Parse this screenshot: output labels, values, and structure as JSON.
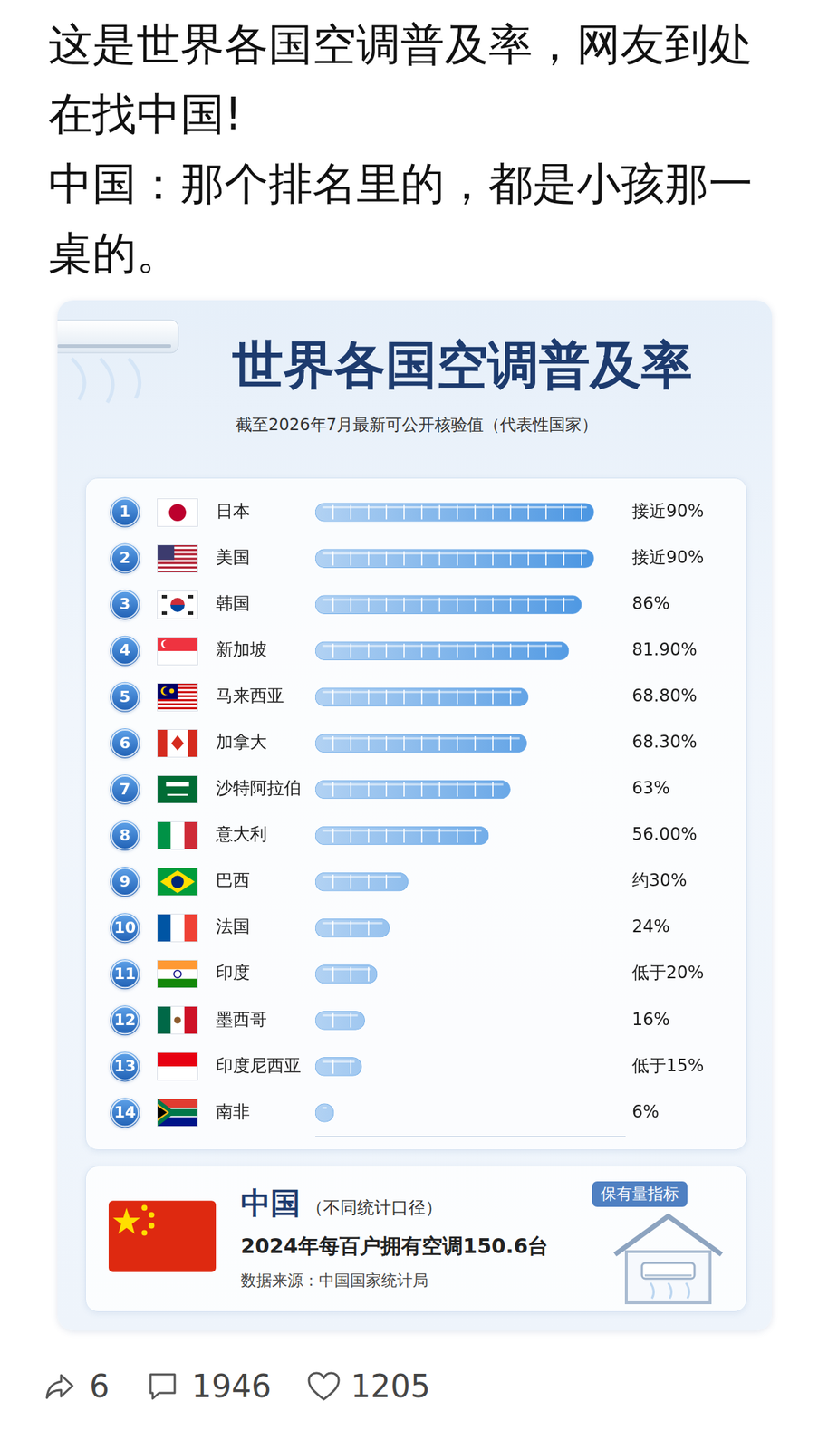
{
  "post": {
    "paragraphs": [
      "这是世界各国空调普及率，网友到处在找中国!",
      "中国：那个排名里的，都是小孩那一桌的。"
    ]
  },
  "chart_data": {
    "type": "bar",
    "orientation": "horizontal",
    "title": "世界各国空调普及率",
    "subtitle": "截至2026年7月最新可公开核验值（代表性国家）",
    "ranks": [
      1,
      2,
      3,
      4,
      5,
      6,
      7,
      8,
      9,
      10,
      11,
      12,
      13,
      14
    ],
    "categories": [
      "日本",
      "美国",
      "韩国",
      "新加坡",
      "马来西亚",
      "加拿大",
      "沙特阿拉伯",
      "意大利",
      "巴西",
      "法国",
      "印度",
      "墨西哥",
      "印度尼西亚",
      "南非"
    ],
    "values": [
      90,
      90,
      86,
      81.9,
      68.8,
      68.3,
      63,
      56,
      30,
      24,
      20,
      16,
      15,
      6
    ],
    "value_labels": [
      "接近90%",
      "接近90%",
      "86%",
      "81.90%",
      "68.80%",
      "68.30%",
      "63%",
      "56.00%",
      "约30%",
      "24%",
      "低于20%",
      "16%",
      "低于15%",
      "6%"
    ],
    "data_labels": true,
    "color": "#3f8fe0",
    "xlim": [
      0,
      100
    ],
    "grid": false,
    "tick_labels": false
  },
  "china_panel": {
    "name": "中国",
    "note": "（不同统计口径）",
    "badge": "保有量指标",
    "text": "2024年每百户拥有空调150.6台",
    "source": "数据来源：中国国家统计局"
  },
  "footer": {
    "shares": 6,
    "comments": 1946,
    "likes": 1205
  }
}
